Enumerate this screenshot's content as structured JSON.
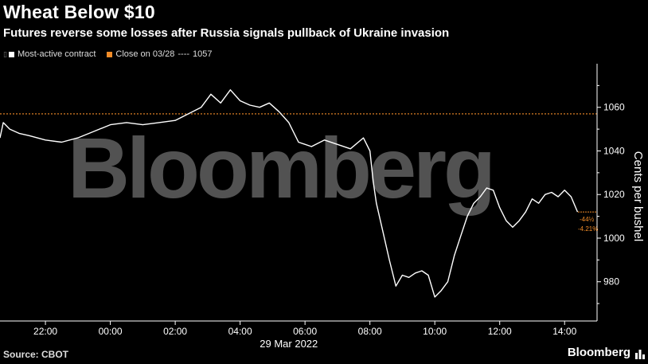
{
  "title": "Wheat Below $10",
  "subtitle": "Futures reverse some losses after Russia signals pullback of Ukraine invasion",
  "legend": {
    "series_label": "Most-active contract",
    "close_label": "Close on 03/28",
    "close_dashes": "----",
    "close_value": "1057"
  },
  "source": "Source: CBOT",
  "brand": "Bloomberg",
  "watermark": "Bloomberg",
  "colors": {
    "background": "#000000",
    "series": "#ffffff",
    "close_line": "#f28c28",
    "axis": "#ffffff",
    "watermark": "#ffffff"
  },
  "chart_data": {
    "type": "line",
    "xlabel": "29 Mar 2022",
    "ylabel": "Cents per bushel",
    "xlim": [
      20.6,
      15.0
    ],
    "ylim": [
      962,
      1080
    ],
    "x_ticks": [
      "22:00",
      "00:00",
      "02:00",
      "04:00",
      "06:00",
      "08:00",
      "10:00",
      "12:00",
      "14:00"
    ],
    "x_tick_hours": [
      22,
      24,
      26,
      28,
      30,
      32,
      34,
      36,
      38
    ],
    "y_ticks": [
      980,
      1000,
      1020,
      1040,
      1060
    ],
    "reference_line": {
      "name": "Close on 03/28",
      "value": 1057
    },
    "last_value_labels": {
      "change": "-44½",
      "percent": "-4.21%"
    },
    "series": [
      {
        "name": "Most-active contract",
        "x": [
          20.6,
          20.7,
          20.9,
          21.2,
          21.5,
          22.0,
          22.5,
          23.0,
          23.5,
          24.0,
          24.5,
          25.0,
          25.5,
          26.0,
          26.4,
          26.8,
          27.1,
          27.4,
          27.7,
          28.0,
          28.3,
          28.6,
          28.9,
          29.2,
          29.5,
          29.8,
          30.2,
          30.6,
          31.0,
          31.4,
          31.8,
          32.0,
          32.1,
          32.2,
          32.4,
          32.6,
          32.8,
          33.0,
          33.2,
          33.4,
          33.6,
          33.8,
          34.0,
          34.2,
          34.4,
          34.6,
          34.8,
          35.0,
          35.2,
          35.4,
          35.6,
          35.8,
          36.0,
          36.2,
          36.4,
          36.6,
          36.8,
          37.0,
          37.2,
          37.4,
          37.6,
          37.8,
          38.0,
          38.2,
          38.4
        ],
        "values": [
          1046,
          1053,
          1050,
          1048,
          1047,
          1045,
          1044,
          1046,
          1049,
          1052,
          1053,
          1052,
          1053,
          1054,
          1057,
          1060,
          1066,
          1062,
          1068,
          1063,
          1061,
          1060,
          1062,
          1058,
          1053,
          1044,
          1042,
          1045,
          1043,
          1041,
          1046,
          1040,
          1026,
          1016,
          1003,
          990,
          978,
          983,
          982,
          984,
          985,
          983,
          973,
          976,
          980,
          992,
          1001,
          1010,
          1016,
          1019,
          1023,
          1022,
          1014,
          1008,
          1005,
          1008,
          1012,
          1018,
          1016,
          1020,
          1021,
          1019,
          1022,
          1019,
          1012
        ]
      }
    ]
  }
}
